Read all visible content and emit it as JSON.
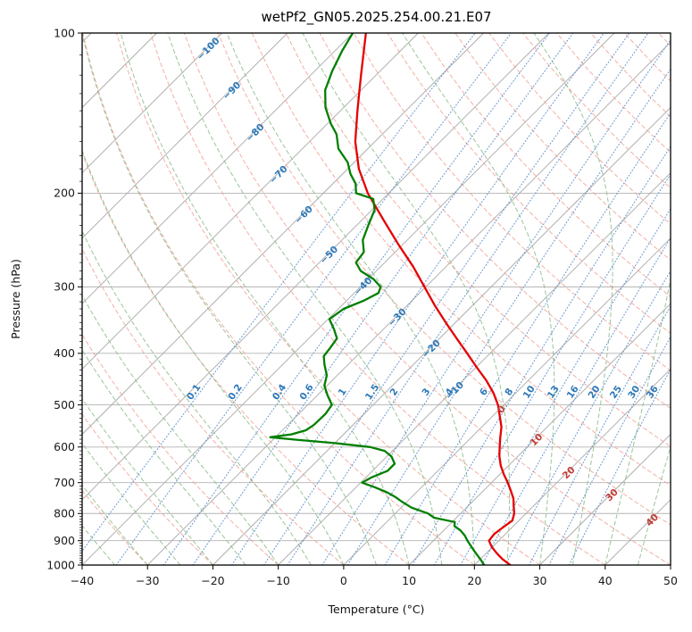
{
  "title": "wetPf2_GN05.2025.254.00.21.E07",
  "axes": {
    "xlabel": "Temperature (°C)",
    "ylabel": "Pressure (hPa)",
    "x_ticks": [
      -40,
      -30,
      -20,
      -10,
      0,
      10,
      20,
      30,
      40,
      50
    ],
    "p_ticks": [
      100,
      200,
      300,
      400,
      500,
      600,
      700,
      800,
      900,
      1000
    ],
    "x_range": [
      -40,
      50
    ],
    "p_range": [
      100,
      1000
    ]
  },
  "style": {
    "background": "#ffffff",
    "grid_color": "#b3b3b3",
    "isotherm_color": "#a9a9a9",
    "dry_adiabat_color": "#f1a195",
    "moist_adiabat_color": "#8abb86",
    "mixing_line_color": "#5e92cc",
    "temp_color": "#e50000",
    "dewpoint_color": "#007f00",
    "blue_label_color": "#2e79b8",
    "red_label_color": "#c23b36",
    "axis_color": "#000000",
    "text_color": "#1a1a1a"
  },
  "chart_data": {
    "type": "line",
    "variant": "skew-t-log-p",
    "title": "wetPf2_GN05.2025.254.00.21.E07",
    "xlabel": "Temperature (°C)",
    "ylabel": "Pressure (hPa)",
    "x_range_c": [
      -40,
      50
    ],
    "pressure_range_hpa": [
      100,
      1000
    ],
    "skew_deg": 45,
    "grid": "on",
    "series": [
      {
        "name": "temperature",
        "color": "#e50000",
        "units": {
          "p": "hPa",
          "t": "C"
        },
        "points": [
          [
            1000,
            25.5
          ],
          [
            975,
            23.4
          ],
          [
            950,
            21.6
          ],
          [
            925,
            19.9
          ],
          [
            900,
            18.5
          ],
          [
            875,
            18.3
          ],
          [
            850,
            18.6
          ],
          [
            825,
            19.0
          ],
          [
            800,
            18.2
          ],
          [
            775,
            17.0
          ],
          [
            750,
            15.8
          ],
          [
            725,
            14.2
          ],
          [
            700,
            12.5
          ],
          [
            675,
            10.6
          ],
          [
            650,
            8.8
          ],
          [
            625,
            7.2
          ],
          [
            600,
            5.8
          ],
          [
            575,
            4.4
          ],
          [
            550,
            3.0
          ],
          [
            525,
            1.1
          ],
          [
            500,
            -0.9
          ],
          [
            475,
            -3.4
          ],
          [
            450,
            -6.4
          ],
          [
            425,
            -9.9
          ],
          [
            400,
            -13.5
          ],
          [
            375,
            -17.4
          ],
          [
            350,
            -21.5
          ],
          [
            325,
            -25.8
          ],
          [
            300,
            -30.2
          ],
          [
            275,
            -35.0
          ],
          [
            250,
            -40.6
          ],
          [
            225,
            -46.6
          ],
          [
            200,
            -53.2
          ],
          [
            180,
            -58.3
          ],
          [
            160,
            -63.0
          ],
          [
            140,
            -67.4
          ],
          [
            120,
            -72.3
          ],
          [
            100,
            -78.0
          ]
        ]
      },
      {
        "name": "dewpoint",
        "color": "#007f00",
        "units": {
          "p": "hPa",
          "t": "C"
        },
        "points": [
          [
            1000,
            21.5
          ],
          [
            975,
            20.0
          ],
          [
            950,
            18.4
          ],
          [
            925,
            16.8
          ],
          [
            900,
            15.2
          ],
          [
            880,
            14.0
          ],
          [
            860,
            12.5
          ],
          [
            845,
            11.0
          ],
          [
            830,
            10.4
          ],
          [
            815,
            6.6
          ],
          [
            800,
            5.0
          ],
          [
            780,
            1.6
          ],
          [
            760,
            -0.8
          ],
          [
            745,
            -2.5
          ],
          [
            730,
            -4.5
          ],
          [
            715,
            -7.0
          ],
          [
            700,
            -9.8
          ],
          [
            685,
            -9.2
          ],
          [
            665,
            -7.7
          ],
          [
            645,
            -7.7
          ],
          [
            625,
            -9.3
          ],
          [
            610,
            -11.2
          ],
          [
            600,
            -14.0
          ],
          [
            590,
            -20.0
          ],
          [
            582,
            -26.0
          ],
          [
            575,
            -30.8
          ],
          [
            568,
            -28.0
          ],
          [
            558,
            -26.4
          ],
          [
            545,
            -26.0
          ],
          [
            520,
            -25.9
          ],
          [
            500,
            -26.3
          ],
          [
            480,
            -28.4
          ],
          [
            460,
            -30.4
          ],
          [
            440,
            -31.6
          ],
          [
            420,
            -33.6
          ],
          [
            405,
            -35.0
          ],
          [
            390,
            -35.3
          ],
          [
            375,
            -35.7
          ],
          [
            360,
            -37.6
          ],
          [
            345,
            -39.8
          ],
          [
            330,
            -39.2
          ],
          [
            318,
            -37.3
          ],
          [
            308,
            -36.3
          ],
          [
            300,
            -36.9
          ],
          [
            290,
            -39.2
          ],
          [
            280,
            -42.4
          ],
          [
            270,
            -44.4
          ],
          [
            258,
            -44.8
          ],
          [
            245,
            -46.8
          ],
          [
            230,
            -48.2
          ],
          [
            215,
            -49.6
          ],
          [
            205,
            -51.5
          ],
          [
            200,
            -55.0
          ],
          [
            192,
            -56.5
          ],
          [
            184,
            -58.8
          ],
          [
            175,
            -61.0
          ],
          [
            165,
            -64.5
          ],
          [
            155,
            -67.0
          ],
          [
            148,
            -69.5
          ],
          [
            138,
            -72.8
          ],
          [
            128,
            -75.5
          ],
          [
            118,
            -77.3
          ],
          [
            108,
            -78.9
          ],
          [
            100,
            -80.0
          ]
        ]
      }
    ],
    "background_lines": {
      "isotherms_c": {
        "start": -120,
        "end": 50,
        "step": 10
      },
      "dry_adiabats_theta_c": {
        "start": -40,
        "end": 270,
        "step": 10
      },
      "moist_adiabats_tw_c": {
        "start": -40,
        "end": 45,
        "step": 5
      },
      "mixing_ratio_g_kg": [
        0.1,
        0.2,
        0.4,
        0.6,
        1,
        1.5,
        2,
        3,
        4,
        6,
        8,
        10,
        13,
        16,
        20,
        25,
        30,
        36
      ]
    },
    "line_labels": {
      "isotherm_blue": [
        {
          "t": -100,
          "y": 57
        },
        {
          "t": -90,
          "y": 104
        },
        {
          "t": -80,
          "y": 151
        },
        {
          "t": -70,
          "y": 198
        },
        {
          "t": -60,
          "y": 243
        },
        {
          "t": -50,
          "y": 288
        },
        {
          "t": -40,
          "y": 323
        },
        {
          "t": -30,
          "y": 358
        },
        {
          "t": -20,
          "y": 393
        },
        {
          "t": -10,
          "y": 440
        }
      ],
      "isotherm_red": [
        {
          "t": 0,
          "y": 461
        },
        {
          "t": 10,
          "y": 495
        },
        {
          "t": 20,
          "y": 532
        },
        {
          "t": 30,
          "y": 557
        },
        {
          "t": 40,
          "y": 585
        }
      ],
      "mixing_ratio_label_y": 441
    }
  }
}
